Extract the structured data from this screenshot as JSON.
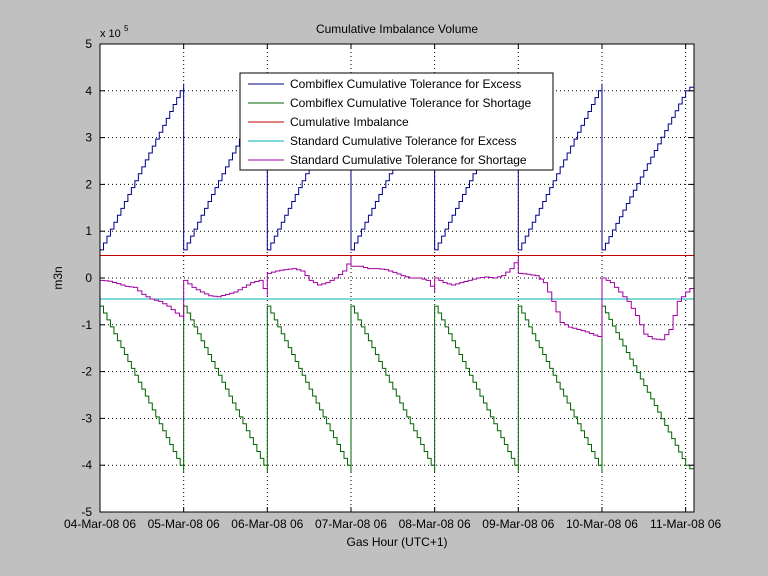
{
  "figure": {
    "background": "#c0c0c0",
    "axes_background": "#ffffff"
  },
  "chart_data": {
    "type": "line",
    "title": "Cumulative Imbalance Volume",
    "xlabel": "Gas Hour (UTC+1)",
    "ylabel": "m3n",
    "y_exponent_label": "x 10",
    "y_exponent_power": "5",
    "xlim": [
      0,
      7.1
    ],
    "ylim": [
      -5,
      5
    ],
    "x_ticks": [
      {
        "x": 0,
        "label": "04-Mar-08 06"
      },
      {
        "x": 1,
        "label": "05-Mar-08 06"
      },
      {
        "x": 2,
        "label": "06-Mar-08 06"
      },
      {
        "x": 3,
        "label": "07-Mar-08 06"
      },
      {
        "x": 4,
        "label": "08-Mar-08 06"
      },
      {
        "x": 5,
        "label": "09-Mar-08 06"
      },
      {
        "x": 6,
        "label": "10-Mar-08 06"
      },
      {
        "x": 7,
        "label": "11-Mar-08 06"
      }
    ],
    "y_ticks": [
      {
        "y": 5,
        "label": "5"
      },
      {
        "y": 4,
        "label": "4"
      },
      {
        "y": 3,
        "label": "3"
      },
      {
        "y": 2,
        "label": "2"
      },
      {
        "y": 1,
        "label": "1"
      },
      {
        "y": 0,
        "label": "0"
      },
      {
        "y": -1,
        "label": "-1"
      },
      {
        "y": -2,
        "label": "-2"
      },
      {
        "y": -3,
        "label": "-3"
      },
      {
        "y": -4,
        "label": "-4"
      },
      {
        "y": -5,
        "label": "-5"
      }
    ],
    "grid": true,
    "legend_position": "top-center",
    "series": [
      {
        "name": "Combiflex Cumulative Tolerance for Excess",
        "color": "#00008b",
        "step": true,
        "points": [
          [
            0,
            0.6
          ],
          [
            1,
            4.15
          ],
          [
            1,
            0.6
          ],
          [
            2,
            4.15
          ],
          [
            2,
            0.6
          ],
          [
            3,
            4.15
          ],
          [
            3,
            0.6
          ],
          [
            4,
            4.15
          ],
          [
            4,
            0.6
          ],
          [
            5,
            4.15
          ],
          [
            5,
            0.6
          ],
          [
            6,
            4.15
          ],
          [
            6,
            0.6
          ],
          [
            7,
            4.0
          ],
          [
            7.1,
            4.15
          ]
        ]
      },
      {
        "name": "Combiflex Cumulative Tolerance for Shortage",
        "color": "#006400",
        "step": true,
        "points": [
          [
            0,
            -0.6
          ],
          [
            1,
            -4.15
          ],
          [
            1,
            -0.6
          ],
          [
            2,
            -4.15
          ],
          [
            2,
            -0.6
          ],
          [
            3,
            -4.15
          ],
          [
            3,
            -0.6
          ],
          [
            4,
            -4.15
          ],
          [
            4,
            -0.6
          ],
          [
            5,
            -4.15
          ],
          [
            5,
            -0.6
          ],
          [
            6,
            -4.15
          ],
          [
            6,
            -0.6
          ],
          [
            7,
            -4.0
          ],
          [
            7.1,
            -4.15
          ]
        ]
      },
      {
        "name": "Cumulative Imbalance",
        "color": "#c00000",
        "step": false,
        "points": [
          [
            0,
            0.48
          ],
          [
            7.1,
            0.48
          ]
        ]
      },
      {
        "name": "Standard Cumulative Tolerance for Excess",
        "color": "#00b4b4",
        "step": false,
        "points": [
          [
            0,
            -0.45
          ],
          [
            7.1,
            -0.45
          ]
        ]
      },
      {
        "name": "Standard Cumulative Tolerance for Shortage",
        "color": "#a000a0",
        "step": true,
        "points": [
          [
            0,
            -0.05
          ],
          [
            0.1,
            -0.07
          ],
          [
            0.2,
            -0.12
          ],
          [
            0.3,
            -0.18
          ],
          [
            0.4,
            -0.2
          ],
          [
            0.5,
            -0.35
          ],
          [
            0.6,
            -0.45
          ],
          [
            0.7,
            -0.5
          ],
          [
            0.8,
            -0.6
          ],
          [
            0.9,
            -0.75
          ],
          [
            1.0,
            -0.88
          ],
          [
            1.0,
            -0.05
          ],
          [
            1.1,
            -0.2
          ],
          [
            1.2,
            -0.3
          ],
          [
            1.3,
            -0.38
          ],
          [
            1.4,
            -0.4
          ],
          [
            1.5,
            -0.35
          ],
          [
            1.6,
            -0.3
          ],
          [
            1.7,
            -0.2
          ],
          [
            1.8,
            -0.1
          ],
          [
            1.9,
            -0.05
          ],
          [
            2.0,
            -0.4
          ],
          [
            2.0,
            0.1
          ],
          [
            2.1,
            0.15
          ],
          [
            2.2,
            0.18
          ],
          [
            2.3,
            0.2
          ],
          [
            2.4,
            0.15
          ],
          [
            2.5,
            -0.05
          ],
          [
            2.6,
            -0.15
          ],
          [
            2.7,
            -0.1
          ],
          [
            2.8,
            0.0
          ],
          [
            2.9,
            0.15
          ],
          [
            3.0,
            0.45
          ],
          [
            3.0,
            0.25
          ],
          [
            3.1,
            0.25
          ],
          [
            3.2,
            0.2
          ],
          [
            3.3,
            0.2
          ],
          [
            3.4,
            0.18
          ],
          [
            3.5,
            0.12
          ],
          [
            3.6,
            0.05
          ],
          [
            3.7,
            0.0
          ],
          [
            3.8,
            0.0
          ],
          [
            3.9,
            -0.05
          ],
          [
            4.0,
            -0.3
          ],
          [
            4.0,
            0.0
          ],
          [
            4.1,
            -0.1
          ],
          [
            4.2,
            -0.15
          ],
          [
            4.3,
            -0.1
          ],
          [
            4.4,
            -0.05
          ],
          [
            4.5,
            0.0
          ],
          [
            4.6,
            0.02
          ],
          [
            4.7,
            0.0
          ],
          [
            4.8,
            0.05
          ],
          [
            4.9,
            0.2
          ],
          [
            5.0,
            0.45
          ],
          [
            5.0,
            0.1
          ],
          [
            5.1,
            0.08
          ],
          [
            5.2,
            0.05
          ],
          [
            5.3,
            -0.1
          ],
          [
            5.4,
            -0.5
          ],
          [
            5.5,
            -0.95
          ],
          [
            5.6,
            -1.05
          ],
          [
            5.7,
            -1.1
          ],
          [
            5.8,
            -1.15
          ],
          [
            5.9,
            -1.22
          ],
          [
            6.0,
            -1.28
          ],
          [
            6.0,
            0.0
          ],
          [
            6.1,
            -0.1
          ],
          [
            6.2,
            -0.3
          ],
          [
            6.3,
            -0.5
          ],
          [
            6.4,
            -0.8
          ],
          [
            6.5,
            -1.2
          ],
          [
            6.6,
            -1.3
          ],
          [
            6.7,
            -1.32
          ],
          [
            6.8,
            -1.1
          ],
          [
            6.9,
            -0.5
          ],
          [
            7.0,
            -0.3
          ],
          [
            7.1,
            -0.15
          ]
        ]
      }
    ]
  }
}
